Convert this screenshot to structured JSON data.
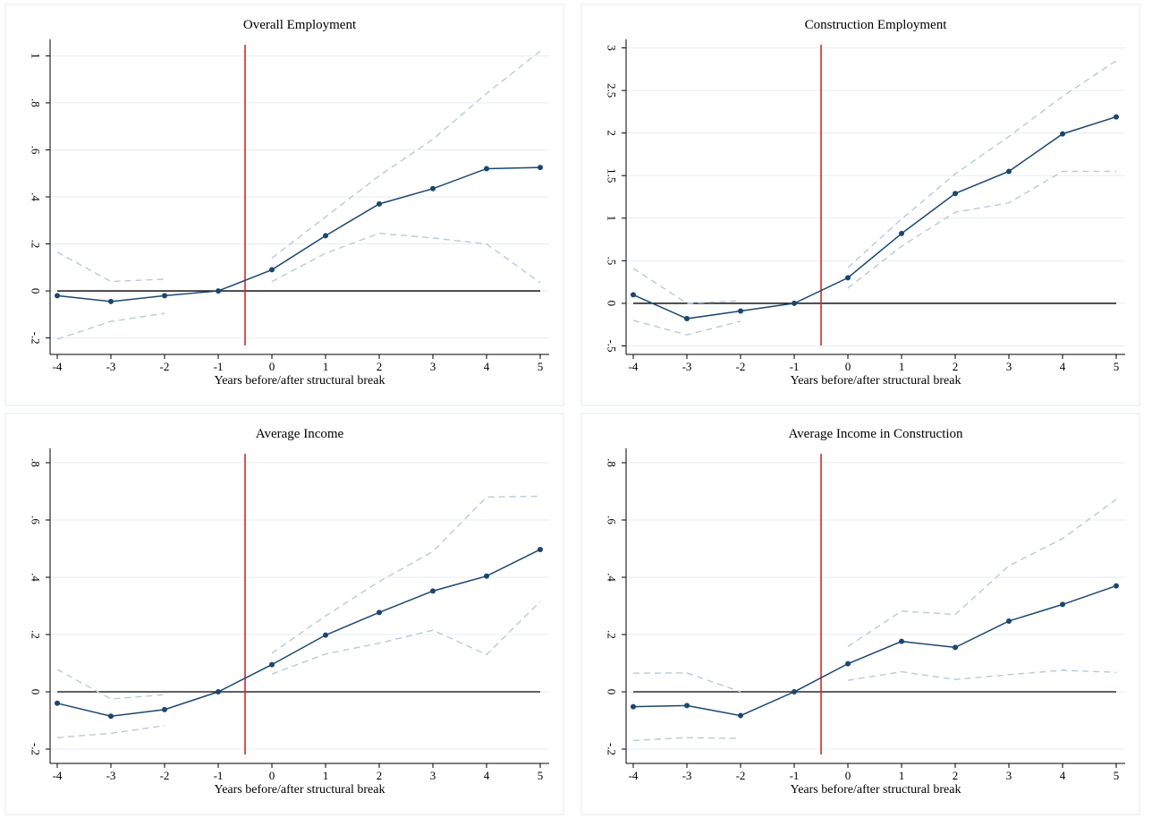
{
  "chart_data": [
    {
      "type": "line",
      "title": "Overall Employment",
      "xlabel": "Years before/after structural break",
      "ylabel": "",
      "x": [
        -4,
        -3,
        -2,
        -1,
        0,
        1,
        2,
        3,
        4,
        5
      ],
      "xlim": [
        -4,
        5
      ],
      "ylim": [
        -0.27,
        1.07
      ],
      "yticks": [
        -0.2,
        0,
        0.2,
        0.4,
        0.6,
        0.8,
        1
      ],
      "ytick_labels": [
        "-.2",
        "0",
        ".2",
        ".4",
        ".6",
        ".8",
        "1"
      ],
      "xtick_labels": [
        "-4",
        "-3",
        "-2",
        "-1",
        "0",
        "1",
        "2",
        "3",
        "4",
        "5"
      ],
      "break_x": -0.5,
      "zero_line": 0,
      "grid": true,
      "series": [
        {
          "role": "estimate",
          "values": [
            -0.02,
            -0.045,
            -0.02,
            0.0,
            0.09,
            0.235,
            0.37,
            0.435,
            0.52,
            0.525
          ],
          "color": "#1a476f"
        },
        {
          "role": "upper_ci",
          "segments": [
            [
              -4,
              -2
            ],
            [
              0,
              5
            ]
          ],
          "values": [
            0.165,
            0.04,
            0.05,
            null,
            0.14,
            0.315,
            0.49,
            0.645,
            0.84,
            1.02
          ],
          "color": "#b9c9d9"
        },
        {
          "role": "lower_ci",
          "segments": [
            [
              -4,
              -2
            ],
            [
              0,
              5
            ]
          ],
          "values": [
            -0.205,
            -0.13,
            -0.095,
            null,
            0.04,
            0.16,
            0.245,
            0.225,
            0.2,
            0.035
          ],
          "color": "#b9c9d9"
        }
      ]
    },
    {
      "type": "line",
      "title": "Construction Employment",
      "xlabel": "Years before/after structural break",
      "ylabel": "",
      "x": [
        -4,
        -3,
        -2,
        -1,
        0,
        1,
        2,
        3,
        4,
        5
      ],
      "xlim": [
        -4,
        5
      ],
      "ylim": [
        -0.6,
        3.1
      ],
      "yticks": [
        -0.5,
        0,
        0.5,
        1,
        1.5,
        2,
        2.5,
        3
      ],
      "ytick_labels": [
        "-.5",
        "0",
        ".5",
        "1",
        "1.5",
        "2",
        "2.5",
        "3"
      ],
      "xtick_labels": [
        "-4",
        "-3",
        "-2",
        "-1",
        "0",
        "1",
        "2",
        "3",
        "4",
        "5"
      ],
      "break_x": -0.5,
      "zero_line": 0,
      "grid": true,
      "series": [
        {
          "role": "estimate",
          "values": [
            0.1,
            -0.18,
            -0.09,
            0.0,
            0.3,
            0.82,
            1.29,
            1.55,
            1.99,
            2.19
          ],
          "color": "#1a476f"
        },
        {
          "role": "upper_ci",
          "segments": [
            [
              -4,
              -2
            ],
            [
              0,
              5
            ]
          ],
          "values": [
            0.41,
            0.0,
            0.03,
            null,
            0.42,
            0.99,
            1.52,
            1.96,
            2.43,
            2.85
          ],
          "color": "#b9c9d9"
        },
        {
          "role": "lower_ci",
          "segments": [
            [
              -4,
              -2
            ],
            [
              0,
              5
            ]
          ],
          "values": [
            -0.2,
            -0.37,
            -0.21,
            null,
            0.18,
            0.67,
            1.07,
            1.18,
            1.55,
            1.55
          ],
          "color": "#b9c9d9"
        }
      ]
    },
    {
      "type": "line",
      "title": "Average Income",
      "xlabel": "Years before/after structural break",
      "ylabel": "",
      "x": [
        -4,
        -3,
        -2,
        -1,
        0,
        1,
        2,
        3,
        4,
        5
      ],
      "xlim": [
        -4,
        5
      ],
      "ylim": [
        -0.25,
        0.85
      ],
      "yticks": [
        -0.2,
        0,
        0.2,
        0.4,
        0.6,
        0.8
      ],
      "ytick_labels": [
        "-.2",
        "0",
        ".2",
        ".4",
        ".6",
        ".8"
      ],
      "xtick_labels": [
        "-4",
        "-3",
        "-2",
        "-1",
        "0",
        "1",
        "2",
        "3",
        "4",
        "5"
      ],
      "break_x": -0.5,
      "zero_line": 0,
      "grid": true,
      "series": [
        {
          "role": "estimate",
          "values": [
            -0.04,
            -0.085,
            -0.062,
            0.0,
            0.095,
            0.198,
            0.277,
            0.352,
            0.404,
            0.497
          ],
          "color": "#1a476f"
        },
        {
          "role": "upper_ci",
          "segments": [
            [
              -4,
              -2
            ],
            [
              0,
              5
            ]
          ],
          "values": [
            0.078,
            -0.025,
            -0.01,
            null,
            0.135,
            0.265,
            0.385,
            0.49,
            0.68,
            0.683
          ],
          "color": "#b9c9d9"
        },
        {
          "role": "lower_ci",
          "segments": [
            [
              -4,
              -2
            ],
            [
              0,
              5
            ]
          ],
          "values": [
            -0.16,
            -0.145,
            -0.118,
            null,
            0.062,
            0.132,
            0.17,
            0.215,
            0.13,
            0.315
          ],
          "color": "#b9c9d9"
        }
      ]
    },
    {
      "type": "line",
      "title": "Average Income in Construction",
      "xlabel": "Years before/after structural break",
      "ylabel": "",
      "x": [
        -4,
        -3,
        -2,
        -1,
        0,
        1,
        2,
        3,
        4,
        5
      ],
      "xlim": [
        -4,
        5
      ],
      "ylim": [
        -0.25,
        0.85
      ],
      "yticks": [
        -0.2,
        0,
        0.2,
        0.4,
        0.6,
        0.8
      ],
      "ytick_labels": [
        "-.2",
        "0",
        ".2",
        ".4",
        ".6",
        ".8"
      ],
      "xtick_labels": [
        "-4",
        "-3",
        "-2",
        "-1",
        "0",
        "1",
        "2",
        "3",
        "4",
        "5"
      ],
      "break_x": -0.5,
      "zero_line": 0,
      "grid": true,
      "series": [
        {
          "role": "estimate",
          "values": [
            -0.052,
            -0.048,
            -0.083,
            0.0,
            0.098,
            0.176,
            0.155,
            0.247,
            0.305,
            0.37
          ],
          "color": "#1a476f"
        },
        {
          "role": "upper_ci",
          "segments": [
            [
              -4,
              -2
            ],
            [
              0,
              5
            ]
          ],
          "values": [
            0.065,
            0.066,
            0.0,
            null,
            0.158,
            0.282,
            0.27,
            0.44,
            0.535,
            0.672
          ],
          "color": "#b9c9d9"
        },
        {
          "role": "lower_ci",
          "segments": [
            [
              -4,
              -2
            ],
            [
              0,
              5
            ]
          ],
          "values": [
            -0.17,
            -0.16,
            -0.163,
            null,
            0.04,
            0.07,
            0.043,
            0.06,
            0.075,
            0.068
          ],
          "color": "#b9c9d9"
        }
      ]
    }
  ]
}
